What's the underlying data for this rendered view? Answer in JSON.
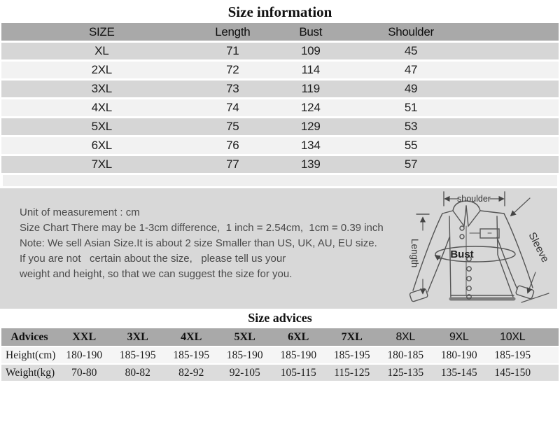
{
  "page": {
    "title": "Size information",
    "advices_title": "Size advices"
  },
  "colors": {
    "table_header_bg": "#a9a9a9",
    "row_gray": "#d6d6d6",
    "row_light": "#f2f2f2",
    "notes_panel_bg": "#d8d8d8",
    "text_dark": "#1c1c1c",
    "notes_text": "#4a4a4a"
  },
  "size_table": {
    "headers": [
      "SIZE",
      "Length",
      "Bust",
      "Shoulder"
    ],
    "rows": [
      {
        "size": "XL",
        "length": "71",
        "bust": "109",
        "shoulder": "45"
      },
      {
        "size": "2XL",
        "length": "72",
        "bust": "114",
        "shoulder": "47"
      },
      {
        "size": "3XL",
        "length": "73",
        "bust": "119",
        "shoulder": "49"
      },
      {
        "size": "4XL",
        "length": "74",
        "bust": "124",
        "shoulder": "51"
      },
      {
        "size": "5XL",
        "length": "75",
        "bust": "129",
        "shoulder": "53"
      },
      {
        "size": "6XL",
        "length": "76",
        "bust": "134",
        "shoulder": "55"
      },
      {
        "size": "7XL",
        "length": "77",
        "bust": "139",
        "shoulder": "57"
      }
    ]
  },
  "notes": {
    "lines": [
      "Unit of measurement : cm",
      "Size Chart There may be 1-3cm difference,  1 inch = 2.54cm,  1cm = 0.39 inch",
      "Note: We sell Asian Size.It is about 2 size Smaller than US, UK, AU, EU size.",
      "If you are not   certain about the size,   please tell us your",
      "weight and height, so that we can suggest the size for you."
    ]
  },
  "diagram": {
    "shoulder_label": "shoulder",
    "length_label": "Length",
    "bust_label": "Bust",
    "sleeve_label": "Sleeve"
  },
  "advices_table": {
    "headers": [
      "Advices",
      "XXL",
      "3XL",
      "4XL",
      "5XL",
      "6XL",
      "7XL",
      "8XL",
      "9XL",
      "10XL"
    ],
    "rows": [
      {
        "label": "Height(cm)",
        "values": [
          "180-190",
          "185-195",
          "185-195",
          "185-190",
          "185-190",
          "185-195",
          "180-185",
          "180-190",
          "185-195"
        ]
      },
      {
        "label": "Weight(kg)",
        "values": [
          "70-80",
          "80-82",
          "82-92",
          "92-105",
          "105-115",
          "115-125",
          "125-135",
          "135-145",
          "145-150"
        ]
      }
    ]
  }
}
